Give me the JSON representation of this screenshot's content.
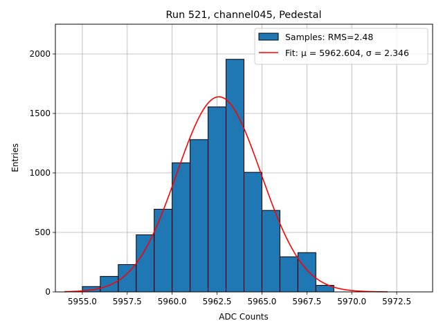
{
  "chart_data": {
    "type": "bar",
    "title": "Run 521, channel045, Pedestal",
    "xlabel": "ADC Counts",
    "ylabel": "Entries",
    "xlim": [
      5953.5,
      5974.5
    ],
    "ylim": [
      0,
      2250
    ],
    "grid": true,
    "xticks": [
      5955.0,
      5957.5,
      5960.0,
      5962.5,
      5965.0,
      5967.5,
      5970.0,
      5972.5
    ],
    "xtick_labels": [
      "5955.0",
      "5957.5",
      "5960.0",
      "5962.5",
      "5965.0",
      "5967.5",
      "5970.0",
      "5972.5"
    ],
    "yticks": [
      0,
      500,
      1000,
      1500,
      2000
    ],
    "ytick_labels": [
      "0",
      "500",
      "1000",
      "1500",
      "2000"
    ],
    "bin_width": 1,
    "bin_left_edges": [
      5955,
      5956,
      5957,
      5958,
      5959,
      5960,
      5961,
      5962,
      5963,
      5964,
      5965,
      5966,
      5967,
      5968
    ],
    "values": [
      45,
      130,
      230,
      480,
      695,
      1085,
      1280,
      1555,
      1955,
      1005,
      685,
      295,
      330,
      55
    ],
    "fit": {
      "type": "gaussian",
      "mu": 5962.604,
      "sigma": 2.346,
      "amplitude": 1640,
      "x_range": [
        5954,
        5972
      ]
    },
    "legend": {
      "position": "top-right",
      "entries": [
        {
          "name": "Samples: RMS=2.48",
          "kind": "patch",
          "color": "#1f77b4"
        },
        {
          "name": "Fit: μ = 5962.604, σ = 2.346",
          "kind": "line",
          "color": "#ff0000"
        }
      ]
    }
  }
}
